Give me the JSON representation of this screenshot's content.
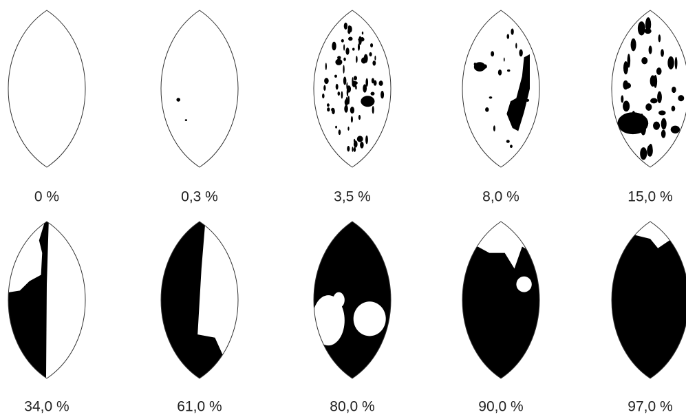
{
  "figure": {
    "items": [
      {
        "label": "0 %"
      },
      {
        "label": "0,3 %"
      },
      {
        "label": "3,5 %"
      },
      {
        "label": "8,0 %"
      },
      {
        "label": "15,0 %"
      },
      {
        "label": "34,0 %"
      },
      {
        "label": "61,0 %"
      },
      {
        "label": "80,0 %"
      },
      {
        "label": "90,0 %"
      },
      {
        "label": "97,0 %"
      }
    ]
  }
}
